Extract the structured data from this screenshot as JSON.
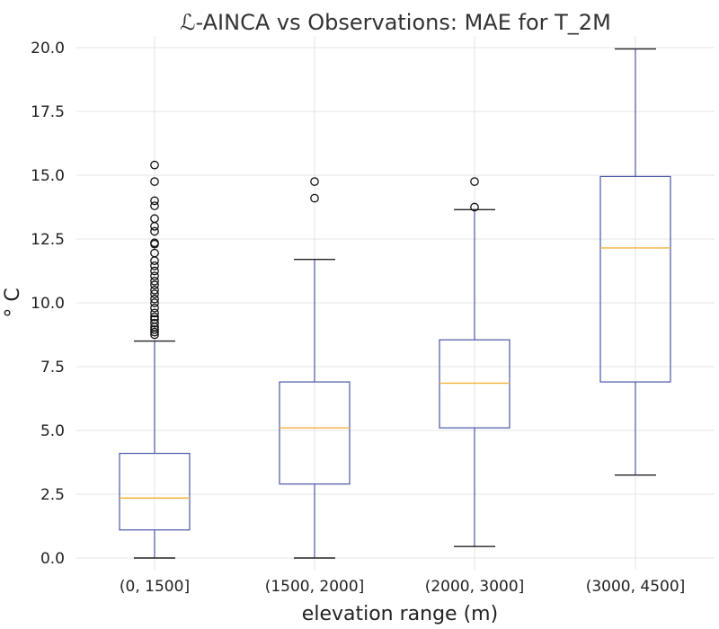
{
  "chart_data": {
    "type": "boxplot",
    "title": "ℒ-AINCA vs Observations: MAE for T_2M",
    "xlabel": "elevation range (m)",
    "ylabel": "° C",
    "ylim": [
      0,
      20
    ],
    "yticks": [
      "0.0",
      "2.5",
      "5.0",
      "7.5",
      "10.0",
      "12.5",
      "15.0",
      "17.5",
      "20.0"
    ],
    "ytick_values": [
      0,
      2.5,
      5,
      7.5,
      10,
      12.5,
      15,
      17.5,
      20
    ],
    "grid": true,
    "colors": {
      "box": "#4a58a8",
      "median": "#f5b13d",
      "whisker": "#4a58a8",
      "cap": "#222222",
      "outlier": "#111111"
    },
    "categories": [
      "(0, 1500]",
      "(1500, 2000]",
      "(2000, 3000]",
      "(3000, 4500]"
    ],
    "boxes": [
      {
        "whisker_low": 0.0,
        "q1": 1.1,
        "median": 2.35,
        "q3": 4.1,
        "whisker_high": 8.5,
        "outliers": [
          8.75,
          8.85,
          8.95,
          9.05,
          9.2,
          9.35,
          9.45,
          9.6,
          9.8,
          10.0,
          10.15,
          10.35,
          10.5,
          10.7,
          10.85,
          11.05,
          11.25,
          11.45,
          11.65,
          11.95,
          12.3,
          12.35,
          12.8,
          13.0,
          13.3,
          13.8,
          14.0,
          14.75,
          15.4
        ]
      },
      {
        "whisker_low": 0.0,
        "q1": 2.9,
        "median": 5.1,
        "q3": 6.9,
        "whisker_high": 11.7,
        "outliers": [
          14.1,
          14.75
        ]
      },
      {
        "whisker_low": 0.45,
        "q1": 5.1,
        "median": 6.85,
        "q3": 8.55,
        "whisker_high": 13.65,
        "outliers": [
          13.75,
          14.75
        ]
      },
      {
        "whisker_low": 3.25,
        "q1": 6.9,
        "median": 12.15,
        "q3": 14.95,
        "whisker_high": 19.95,
        "outliers": []
      }
    ]
  }
}
